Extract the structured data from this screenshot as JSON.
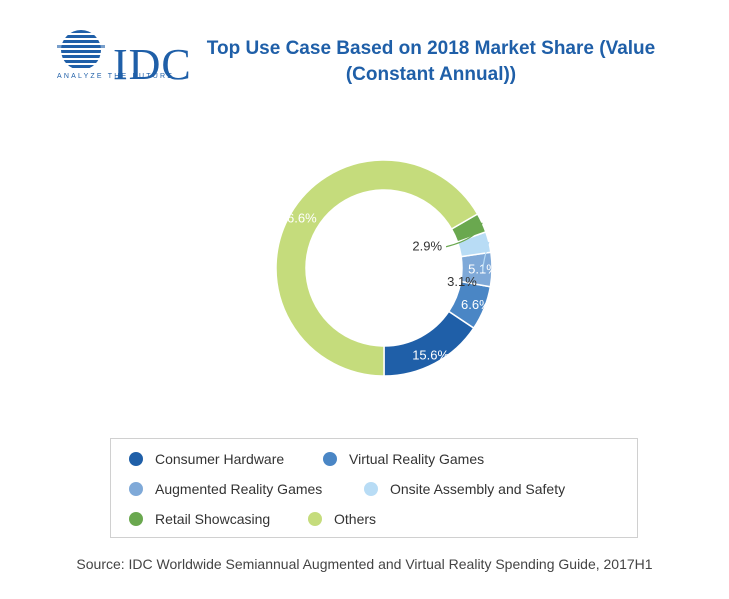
{
  "logo": {
    "text": "IDC",
    "tagline": "ANALYZE THE FUTURE"
  },
  "chart_data": {
    "type": "pie",
    "variant": "donut",
    "title": "Top Use Case Based on 2018 Market Share (Value (Constant Annual))",
    "start_angle_deg": 90,
    "slices": [
      {
        "name": "Consumer Hardware",
        "value": 15.6,
        "label": "15.6%",
        "color": "#1f5fa8",
        "label_position": "inside"
      },
      {
        "name": "Virtual Reality Games",
        "value": 6.6,
        "label": "6.6%",
        "color": "#4a86c5",
        "label_position": "inside"
      },
      {
        "name": "Augmented Reality Games",
        "value": 5.1,
        "label": "5.1%",
        "color": "#7fa9d8",
        "label_position": "inside"
      },
      {
        "name": "Onsite Assembly and Safety",
        "value": 3.1,
        "label": "3.1%",
        "color": "#b8dcf5",
        "label_position": "outside"
      },
      {
        "name": "Retail Showcasing",
        "value": 2.9,
        "label": "2.9%",
        "color": "#6aa84f",
        "label_position": "outside"
      },
      {
        "name": "Others",
        "value": 66.6,
        "label": "66.6%",
        "color": "#c5dc7c",
        "label_position": "inside"
      }
    ],
    "legend_position": "bottom"
  },
  "legend": {
    "items": [
      {
        "label": "Consumer Hardware",
        "color": "#1f5fa8"
      },
      {
        "label": "Virtual Reality Games",
        "color": "#4a86c5"
      },
      {
        "label": "Augmented Reality Games",
        "color": "#7fa9d8"
      },
      {
        "label": "Onsite Assembly and Safety",
        "color": "#b8dcf5"
      },
      {
        "label": "Retail Showcasing",
        "color": "#6aa84f"
      },
      {
        "label": "Others",
        "color": "#c5dc7c"
      }
    ]
  },
  "source": "Source: IDC Worldwide Semiannual Augmented and Virtual Reality Spending Guide, 2017H1"
}
